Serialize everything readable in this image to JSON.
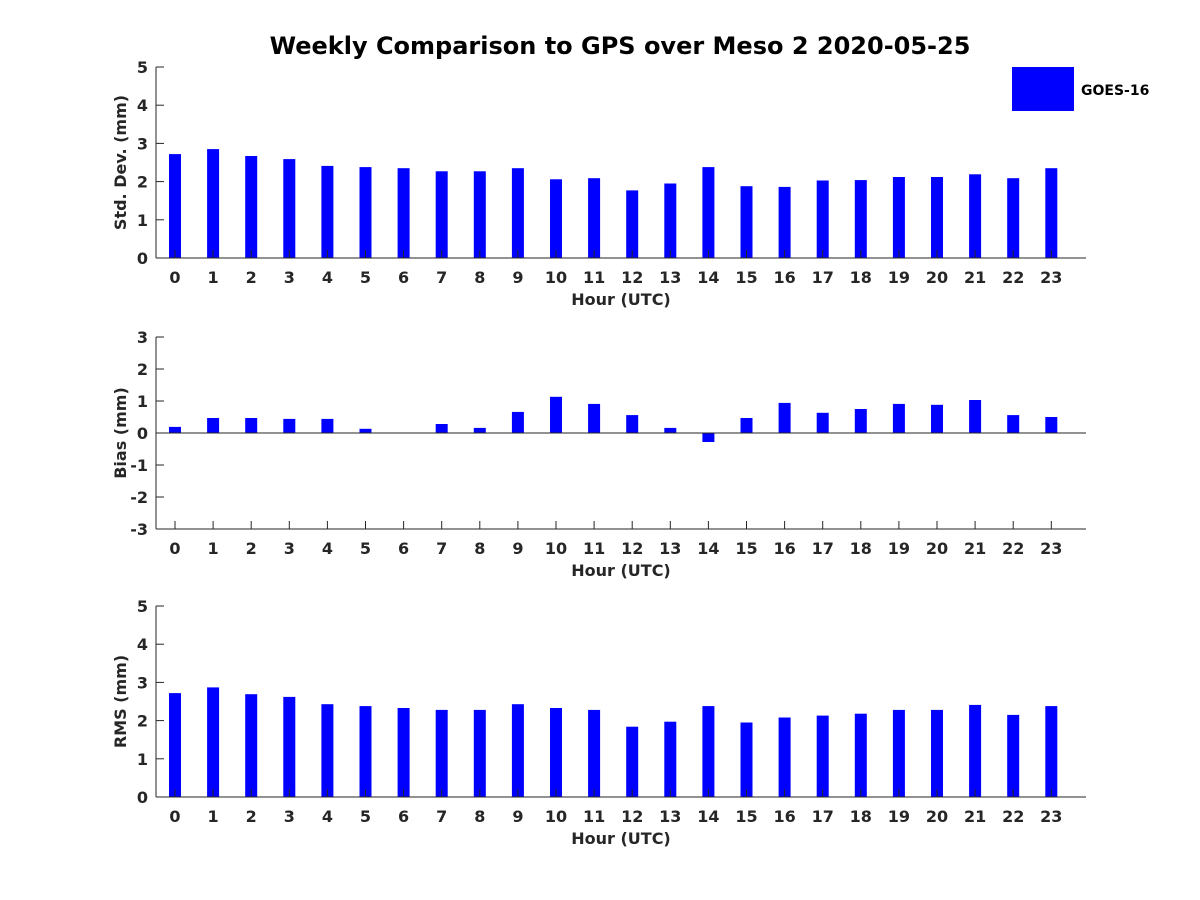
{
  "chart_data": {
    "type": "bar",
    "title": "Weekly Comparison to GPS over Meso 2 2020-05-25",
    "legend": {
      "entries": [
        "GOES-16"
      ],
      "placement": "top-right",
      "color": "#0000ff"
    },
    "bar_color": "#0000ff",
    "categories": [
      "0",
      "1",
      "2",
      "3",
      "4",
      "5",
      "6",
      "7",
      "8",
      "9",
      "10",
      "11",
      "12",
      "13",
      "14",
      "15",
      "16",
      "17",
      "18",
      "19",
      "20",
      "21",
      "22",
      "23"
    ],
    "panels": [
      {
        "id": "std",
        "xlabel": "Hour (UTC)",
        "ylabel": "Std. Dev. (mm)",
        "ylim": [
          0,
          5
        ],
        "yticks": [
          "0",
          "1",
          "2",
          "3",
          "4",
          "5"
        ],
        "series": [
          {
            "name": "GOES-16",
            "values": [
              2.72,
              2.85,
              2.67,
              2.59,
              2.41,
              2.38,
              2.35,
              2.27,
              2.27,
              2.35,
              2.06,
              2.09,
              1.77,
              1.95,
              2.38,
              1.88,
              1.86,
              2.03,
              2.04,
              2.12,
              2.12,
              2.19,
              2.09,
              2.35
            ]
          }
        ]
      },
      {
        "id": "bias",
        "xlabel": "Hour (UTC)",
        "ylabel": "Bias (mm)",
        "ylim": [
          -3,
          3
        ],
        "yticks": [
          "-3",
          "-2",
          "-1",
          "0",
          "1",
          "2",
          "3"
        ],
        "zero_line": true,
        "series": [
          {
            "name": "GOES-16",
            "values": [
              0.19,
              0.47,
              0.47,
              0.44,
              0.44,
              0.13,
              0.0,
              0.28,
              0.16,
              0.66,
              1.13,
              0.91,
              0.56,
              0.16,
              -0.28,
              0.47,
              0.94,
              0.63,
              0.75,
              0.91,
              0.88,
              1.03,
              0.56,
              0.5
            ]
          }
        ]
      },
      {
        "id": "rms",
        "xlabel": "Hour (UTC)",
        "ylabel": "RMS (mm)",
        "ylim": [
          0,
          5
        ],
        "yticks": [
          "0",
          "1",
          "2",
          "3",
          "4",
          "5"
        ],
        "series": [
          {
            "name": "GOES-16",
            "values": [
              2.72,
              2.87,
              2.69,
              2.62,
              2.43,
              2.38,
              2.33,
              2.28,
              2.28,
              2.43,
              2.33,
              2.28,
              1.84,
              1.97,
              2.38,
              1.95,
              2.08,
              2.13,
              2.18,
              2.28,
              2.28,
              2.41,
              2.15,
              2.38
            ]
          }
        ]
      }
    ]
  }
}
